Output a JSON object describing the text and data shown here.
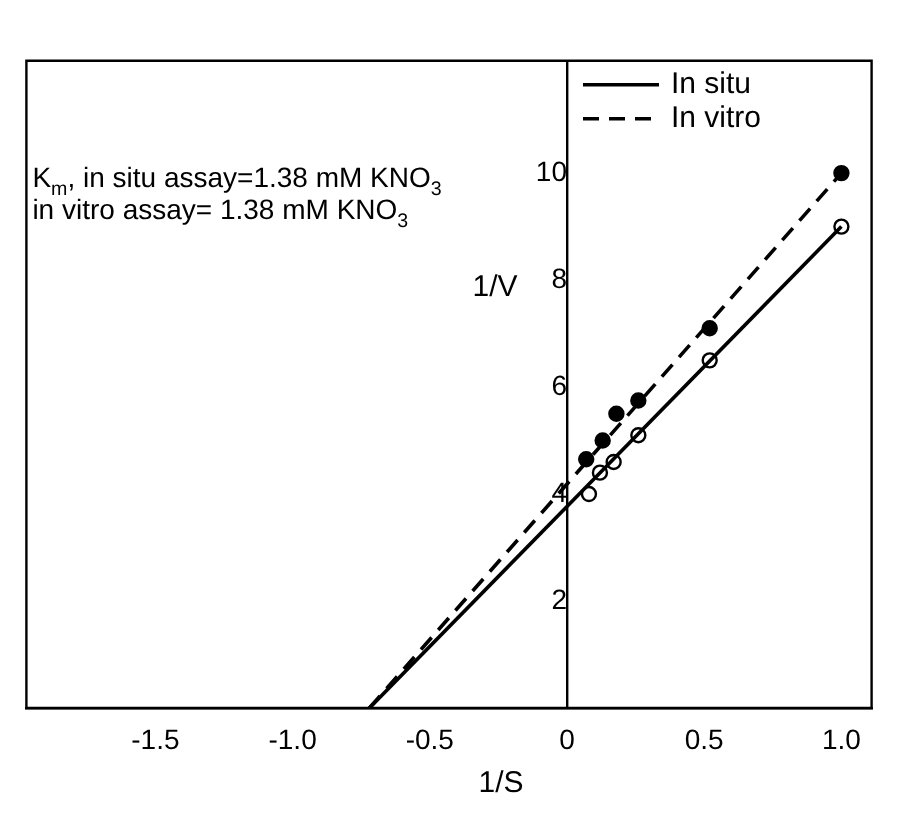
{
  "chart_data": {
    "type": "scatter",
    "xlabel": "1/S",
    "ylabel": "1/V",
    "annotations": [
      "K$_{m}$, in situ assay=1.38 mM KNO$_{3}$",
      "in vitro assay= 1.38 mM KNO$_{3}$"
    ],
    "series": [
      {
        "type": "line",
        "name": "In situ",
        "color": "#000000",
        "line_style": "solid",
        "marker": "none",
        "x": [
          -0.72,
          1.0
        ],
        "values": [
          0,
          9.0
        ]
      },
      {
        "type": "line",
        "name": "In vitro",
        "color": "#000000",
        "line_style": "dashed",
        "marker": "none",
        "x": [
          -0.72,
          1.0
        ],
        "values": [
          0,
          10.0
        ]
      },
      {
        "type": "scatter",
        "color": "#ffffff",
        "marker": "circle",
        "x": [
          0.08,
          0.12,
          0.17,
          0.26,
          0.52,
          1.0
        ],
        "values": [
          4.0,
          4.4,
          4.6,
          5.1,
          6.5,
          9.0
        ]
      },
      {
        "type": "scatter",
        "color": "#000000",
        "marker": "circle",
        "x": [
          0.07,
          0.13,
          0.18,
          0.26,
          0.52,
          1.0
        ],
        "values": [
          4.65,
          5.0,
          5.5,
          5.75,
          7.1,
          10.0
        ]
      }
    ],
    "xlim": [
      -1.97,
      1.11
    ],
    "ylim": [
      0,
      12.1
    ],
    "xticks": [
      -1.5,
      {
        "value": -1.0,
        "label": "-1.0"
      },
      -0.5,
      0,
      0.5,
      {
        "value": 1.0,
        "label": "1.0"
      }
    ],
    "yticks": [
      2,
      4,
      6,
      8,
      10
    ],
    "grid": false,
    "legend": "top right"
  }
}
